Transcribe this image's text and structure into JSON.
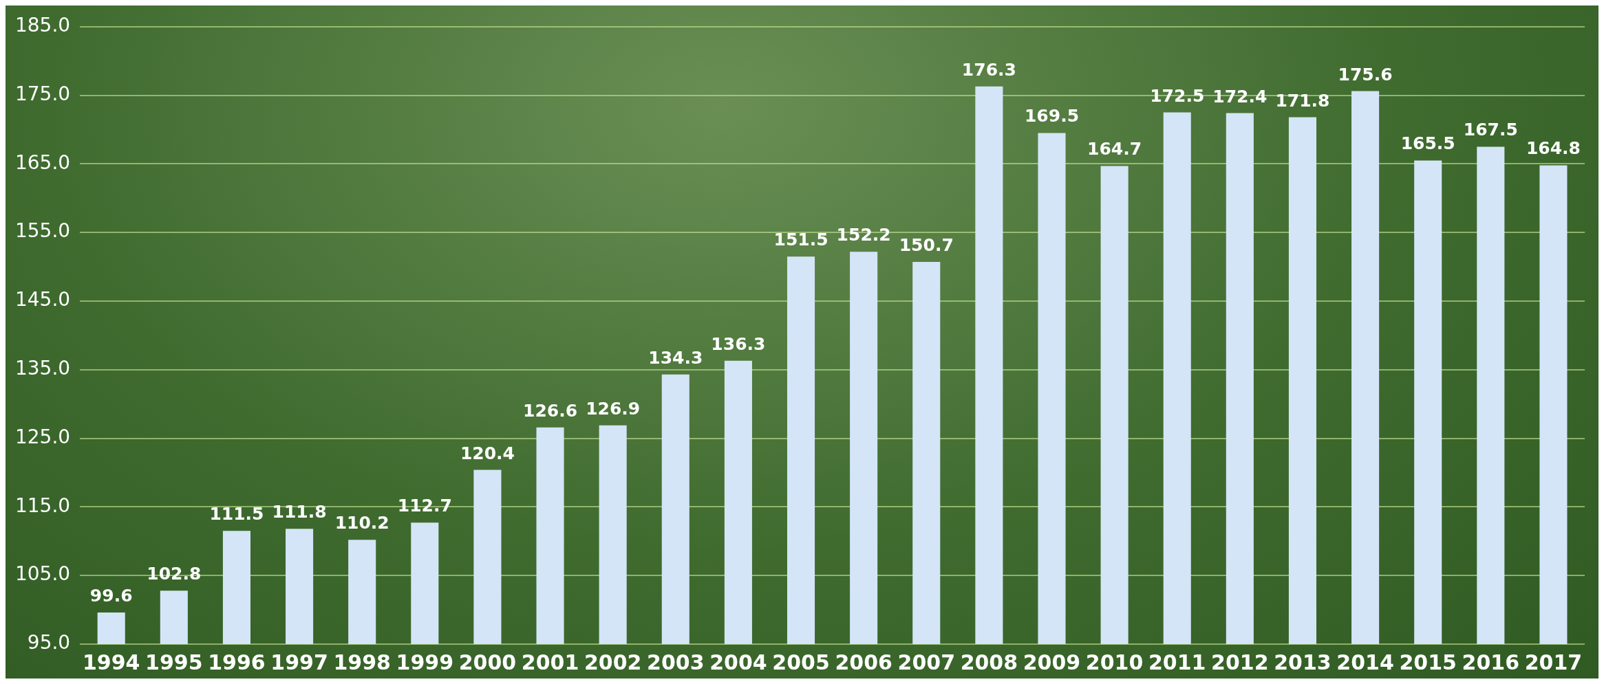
{
  "chart_data": {
    "type": "bar",
    "categories": [
      "1994",
      "1995",
      "1996",
      "1997",
      "1998",
      "1999",
      "2000",
      "2001",
      "2002",
      "2003",
      "2004",
      "2005",
      "2006",
      "2007",
      "2008",
      "2009",
      "2010",
      "2011",
      "2012",
      "2013",
      "2014",
      "2015",
      "2016",
      "2017"
    ],
    "values": [
      99.6,
      102.8,
      111.5,
      111.8,
      110.2,
      112.7,
      120.4,
      126.6,
      126.9,
      134.3,
      136.3,
      151.5,
      152.2,
      150.7,
      176.3,
      169.5,
      164.7,
      172.5,
      172.4,
      171.8,
      175.6,
      165.5,
      167.5,
      164.8
    ],
    "color": "#d4e5f7",
    "ylim": [
      95,
      185
    ],
    "yticks": [
      {
        "value": 95,
        "label": "95.0"
      },
      {
        "value": 105,
        "label": "105.0"
      },
      {
        "value": 115,
        "label": "115.0"
      },
      {
        "value": 125,
        "label": "125.0"
      },
      {
        "value": 135,
        "label": "135.0"
      },
      {
        "value": 145,
        "label": "145.0"
      },
      {
        "value": 155,
        "label": "155.0"
      },
      {
        "value": 165,
        "label": "165.0"
      },
      {
        "value": 175,
        "label": "175.0"
      },
      {
        "value": 185,
        "label": "185.0"
      }
    ],
    "grid": "y",
    "data_labels": true,
    "legend": false
  }
}
